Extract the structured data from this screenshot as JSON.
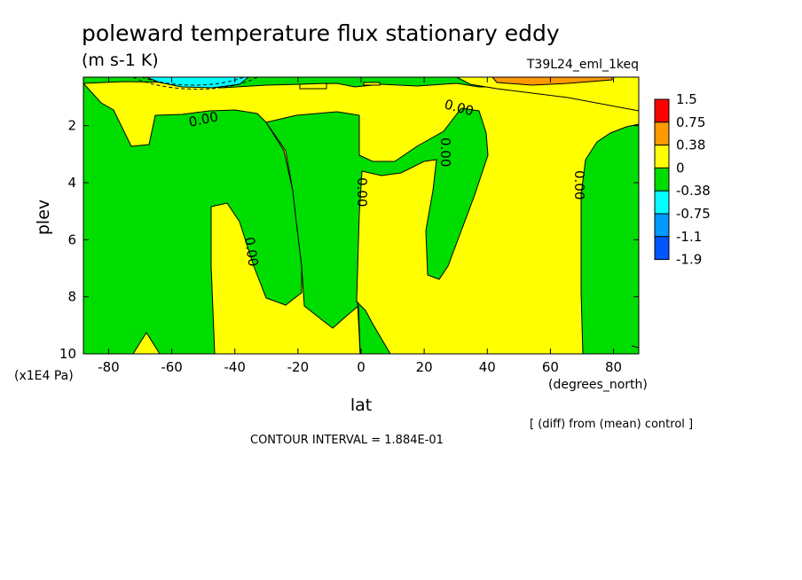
{
  "chart_data": {
    "type": "contour",
    "title": "poleward temperature flux stationary eddy",
    "units": "(m s-1 K)",
    "run_label": "T39L24_eml_1keq",
    "xlabel": "lat",
    "xunits": "(degrees_north)",
    "ylabel": "plev",
    "yunits": "(x1E4 Pa)",
    "x_ticks": [
      -80,
      -60,
      -40,
      -20,
      0,
      20,
      40,
      60,
      80
    ],
    "x_tick_labels": [
      "-80",
      "-60",
      "-40",
      "-20",
      "0",
      "20",
      "40",
      "60",
      "80"
    ],
    "y_ticks": [
      2,
      4,
      6,
      8,
      10
    ],
    "y_tick_labels": [
      "2",
      "4",
      "6",
      "8",
      "10"
    ],
    "xlim": [
      -88,
      88
    ],
    "ylim": [
      10,
      0.3
    ],
    "y_inverted": true,
    "contour_labels": [
      "0.00",
      "0.00",
      "0.00",
      "0.00",
      "0.00",
      "0.00"
    ],
    "legend": {
      "levels": [
        "1.5",
        "0.75",
        "0.38",
        "0",
        "-0.38",
        "-0.75",
        "-1.1",
        "-1.9"
      ],
      "colors": [
        "#ff0000",
        "#ff9900",
        "#ffff00",
        "#00dd00",
        "#00ffff",
        "#0099ff",
        "#0055ff"
      ]
    },
    "field_colors": {
      "positive": "#ffff00",
      "negative": "#00dd00",
      "cyan": "#00ffff",
      "orange": "#ff9900"
    },
    "footer_note": "[ (diff) from (mean) control ]",
    "contour_interval": "CONTOUR INTERVAL = 1.884E-01"
  }
}
